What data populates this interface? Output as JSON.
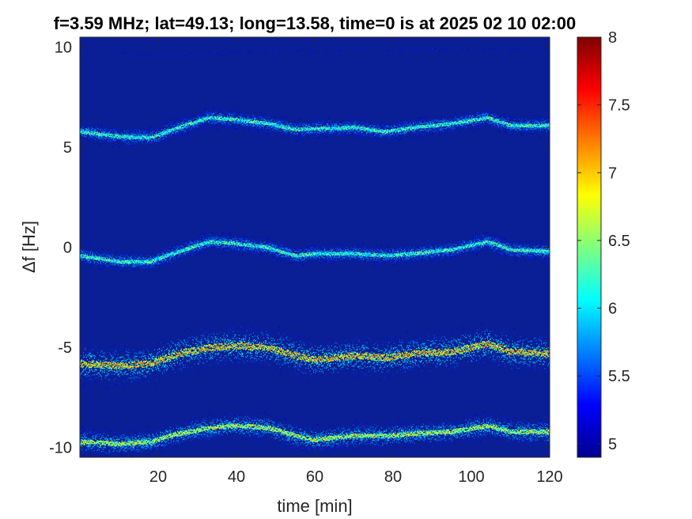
{
  "chart_data": {
    "type": "heatmap",
    "title": "f=3.59 MHz;  lat=49.13; long=13.58, time=0 is at 2025 02 10 02:00",
    "xlabel": "time [min]",
    "ylabel": "Δf [Hz]",
    "xlim": [
      0,
      120
    ],
    "ylim": [
      -10.5,
      10.5
    ],
    "xticks": [
      20,
      40,
      60,
      80,
      100,
      120
    ],
    "xtick_labels": [
      "20",
      "40",
      "60",
      "80",
      "100",
      "120"
    ],
    "yticks": [
      10,
      5,
      0,
      -5,
      -10
    ],
    "ytick_labels": [
      "10",
      "5",
      "0",
      "-5",
      "-10"
    ],
    "colorbar": {
      "clim": [
        4.9,
        8
      ],
      "ticks": [
        8,
        7.5,
        7,
        6.5,
        6,
        5.5,
        5
      ],
      "tick_labels": [
        "8",
        "7.5",
        "7",
        "6.5",
        "6",
        "5.5",
        "5"
      ]
    },
    "colormap": "jet",
    "background_color": "#0a1e96",
    "traces": [
      {
        "name": "",
        "points": [
          [
            0,
            5.8
          ],
          [
            10,
            5.55
          ],
          [
            18,
            5.5
          ],
          [
            25,
            6.0
          ],
          [
            33,
            6.5
          ],
          [
            40,
            6.4
          ],
          [
            48,
            6.2
          ],
          [
            55,
            5.9
          ],
          [
            60,
            5.95
          ],
          [
            70,
            6.0
          ],
          [
            78,
            5.8
          ],
          [
            85,
            6.0
          ],
          [
            95,
            6.2
          ],
          [
            104,
            6.5
          ],
          [
            110,
            6.1
          ],
          [
            120,
            6.1
          ]
        ],
        "peak_intensity": 6.6,
        "spread_hz": 0.25
      },
      {
        "name": "",
        "points": [
          [
            0,
            -0.4
          ],
          [
            10,
            -0.7
          ],
          [
            18,
            -0.7
          ],
          [
            25,
            -0.2
          ],
          [
            33,
            0.3
          ],
          [
            40,
            0.2
          ],
          [
            48,
            0.0
          ],
          [
            55,
            -0.4
          ],
          [
            60,
            -0.3
          ],
          [
            70,
            -0.3
          ],
          [
            78,
            -0.4
          ],
          [
            85,
            -0.3
          ],
          [
            95,
            -0.1
          ],
          [
            104,
            0.3
          ],
          [
            110,
            -0.1
          ],
          [
            120,
            -0.2
          ]
        ],
        "peak_intensity": 6.6,
        "spread_hz": 0.25
      },
      {
        "name": "",
        "points": [
          [
            0,
            -5.8
          ],
          [
            10,
            -5.9
          ],
          [
            18,
            -5.8
          ],
          [
            25,
            -5.3
          ],
          [
            33,
            -5.0
          ],
          [
            40,
            -4.9
          ],
          [
            48,
            -5.0
          ],
          [
            55,
            -5.4
          ],
          [
            60,
            -5.6
          ],
          [
            70,
            -5.4
          ],
          [
            78,
            -5.5
          ],
          [
            85,
            -5.3
          ],
          [
            95,
            -5.2
          ],
          [
            104,
            -4.8
          ],
          [
            110,
            -5.2
          ],
          [
            120,
            -5.3
          ]
        ],
        "peak_intensity": 7.3,
        "spread_hz": 0.55
      },
      {
        "name": "",
        "points": [
          [
            0,
            -9.7
          ],
          [
            10,
            -9.8
          ],
          [
            18,
            -9.7
          ],
          [
            25,
            -9.3
          ],
          [
            33,
            -9.0
          ],
          [
            40,
            -8.9
          ],
          [
            48,
            -9.0
          ],
          [
            55,
            -9.4
          ],
          [
            60,
            -9.6
          ],
          [
            70,
            -9.4
          ],
          [
            78,
            -9.4
          ],
          [
            85,
            -9.3
          ],
          [
            95,
            -9.2
          ],
          [
            104,
            -8.9
          ],
          [
            110,
            -9.2
          ],
          [
            120,
            -9.2
          ]
        ],
        "peak_intensity": 7.0,
        "spread_hz": 0.35
      }
    ],
    "faint_trace": {
      "points": [
        [
          0,
          9.7
        ],
        [
          20,
          9.6
        ],
        [
          60,
          9.8
        ],
        [
          100,
          9.9
        ],
        [
          120,
          9.9
        ]
      ],
      "peak_intensity": 5.2
    }
  }
}
